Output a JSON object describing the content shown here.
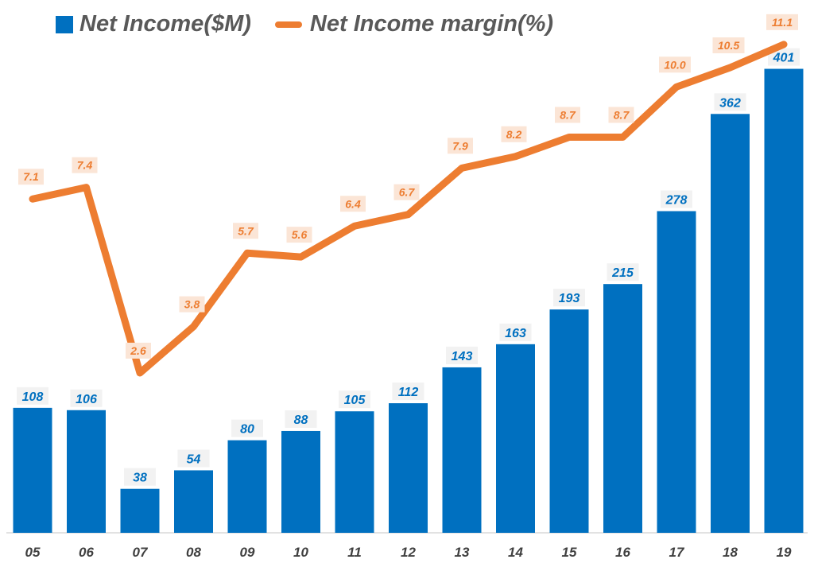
{
  "colors": {
    "bar": "#0070C0",
    "line": "#ED7D31",
    "line_label_bg": "#FBE5D6",
    "bar_label_bg": "#F2F2F2",
    "axis_text": "#404040"
  },
  "legend": {
    "income_label": "Net Income($M)",
    "margin_label": "Net Income margin(%)"
  },
  "chart_data": {
    "type": "bar+line",
    "categories": [
      "05",
      "06",
      "07",
      "08",
      "09",
      "10",
      "11",
      "12",
      "13",
      "14",
      "15",
      "16",
      "17",
      "18",
      "19"
    ],
    "series": [
      {
        "name": "Net Income($M)",
        "type": "bar",
        "values": [
          108,
          106,
          38,
          54,
          80,
          88,
          105,
          112,
          143,
          163,
          193,
          215,
          278,
          362,
          401
        ],
        "labels": [
          "108",
          "106",
          "38",
          "54",
          "80",
          "88",
          "105",
          "112",
          "143",
          "163",
          "193",
          "215",
          "278",
          "362",
          "401"
        ]
      },
      {
        "name": "Net Income margin(%)",
        "type": "line",
        "values": [
          7.1,
          7.4,
          2.6,
          3.8,
          5.7,
          5.6,
          6.4,
          6.7,
          7.9,
          8.2,
          8.7,
          8.7,
          10.0,
          10.5,
          11.1
        ],
        "labels": [
          "7.1",
          "7.4",
          "2.6",
          "3.8",
          "5.7",
          "5.6",
          "6.4",
          "6.7",
          "7.9",
          "8.2",
          "8.7",
          "8.7",
          "10.0",
          "10.5",
          "11.1"
        ]
      }
    ],
    "bar_ylim": [
      0,
      420
    ],
    "line_ylim": [
      0,
      12
    ],
    "grid": false,
    "legend_position": "top-left"
  }
}
